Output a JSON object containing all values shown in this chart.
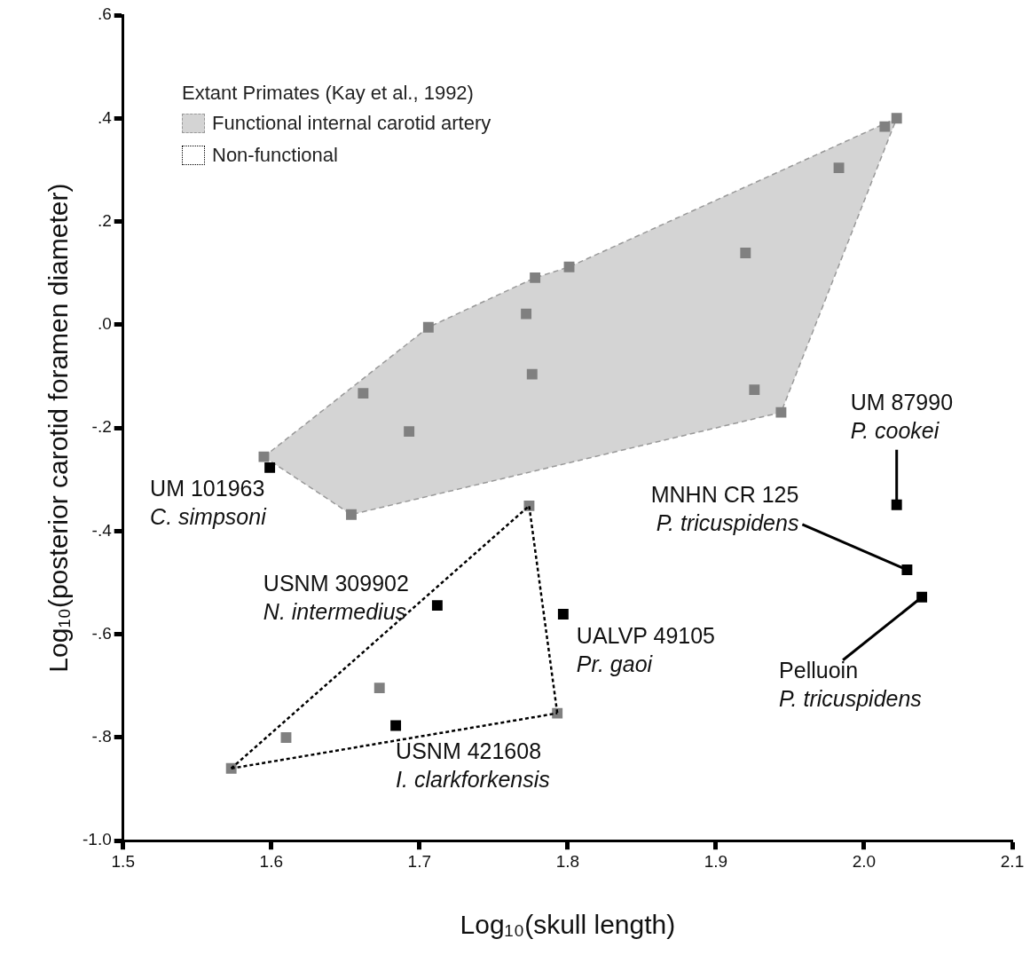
{
  "chart_data": {
    "type": "scatter",
    "xlabel": "Log₁₀(skull length)",
    "ylabel": "Log₁₀(posterior carotid foramen diameter)",
    "legend_title": "Extant Primates (Kay et al., 1992)",
    "legend": "top left",
    "xlim": [
      1.5,
      2.1
    ],
    "xticks": [
      1.5,
      1.6,
      1.7,
      1.8,
      1.9,
      {
        "value": 2,
        "label": "2.0"
      },
      2.1
    ],
    "ylim": [
      -1.0,
      0.6
    ],
    "yticks": [
      {
        "value": -1.0,
        "label": "-1.0"
      },
      {
        "value": -0.8,
        "label": "-.8"
      },
      {
        "value": -0.6,
        "label": "-.6"
      },
      {
        "value": -0.4,
        "label": "-.4"
      },
      {
        "value": -0.2,
        "label": "-.2"
      },
      {
        "value": 0,
        "label": ".0"
      },
      {
        "value": 0.2,
        "label": ".2"
      },
      {
        "value": 0.4,
        "label": ".4"
      },
      {
        "value": 0.6,
        "label": ".6"
      }
    ],
    "grid": false,
    "series": [
      {
        "name": "Functional internal carotid artery",
        "type": "area",
        "color": "#999999",
        "line_style": "dashed",
        "marker": "none",
        "x": [
          1.595,
          1.706,
          1.778,
          1.801,
          2.022,
          1.944,
          1.654,
          1.595
        ],
        "values": [
          -0.256,
          -0.005,
          0.091,
          0.112,
          0.4,
          -0.17,
          -0.368,
          -0.256
        ]
      },
      {
        "name": "Non-functional",
        "type": "line",
        "color": "#000000",
        "line_style": "dotted",
        "marker": "none",
        "x": [
          1.573,
          1.774,
          1.793
        ],
        "values": [
          -0.86,
          -0.351,
          -0.753
        ]
      },
      {
        "type": "line",
        "color": "#000000",
        "line_style": "dotted",
        "marker": "none",
        "x": [
          1.573,
          1.793
        ],
        "values": [
          -0.86,
          -0.753
        ]
      },
      {
        "type": "scatter",
        "color": "#808080",
        "marker": "square",
        "x": [
          1.595,
          1.654,
          1.662,
          1.693,
          1.706,
          1.772,
          1.776,
          1.778,
          1.801,
          1.92,
          1.926,
          1.944,
          1.983,
          2.014,
          2.022
        ],
        "values": [
          -0.256,
          -0.368,
          -0.133,
          -0.207,
          -0.005,
          0.021,
          -0.096,
          0.091,
          0.112,
          0.139,
          -0.126,
          -0.17,
          0.304,
          0.384,
          0.4
        ]
      },
      {
        "type": "scatter",
        "color": "#808080",
        "marker": "square",
        "x": [
          1.774,
          1.673,
          1.61,
          1.573,
          1.793
        ],
        "values": [
          -0.351,
          -0.704,
          -0.8,
          -0.86,
          -0.753
        ]
      },
      {
        "type": "scatter",
        "color": "#000000",
        "marker": "square",
        "x": [
          1.599,
          1.712,
          1.797,
          1.684,
          2.022,
          2.029,
          2.039
        ],
        "values": [
          -0.277,
          -0.544,
          -0.561,
          -0.777,
          -0.349,
          -0.475,
          -0.528
        ]
      }
    ],
    "annotations": [
      {
        "text": "UM 101963\nC. simpsoni",
        "x": 1.599,
        "y": -0.277
      },
      {
        "text": "USNM 309902\nN. intermedius",
        "x": 1.712,
        "y": -0.544
      },
      {
        "text": "UALVP 49105\nPr. gaoi",
        "x": 1.797,
        "y": -0.561
      },
      {
        "text": "USNM 421608\nI. clarkforkensis",
        "x": 1.684,
        "y": -0.777
      },
      {
        "text": "UM 87990\nP. cookei",
        "x": 2.022,
        "y": -0.349
      },
      {
        "text": "MNHN CR 125\nP. tricuspidens",
        "x": 2.029,
        "y": -0.475
      },
      {
        "text": "Pelluoin\nP. tricuspidens",
        "x": 2.039,
        "y": -0.528
      }
    ]
  }
}
